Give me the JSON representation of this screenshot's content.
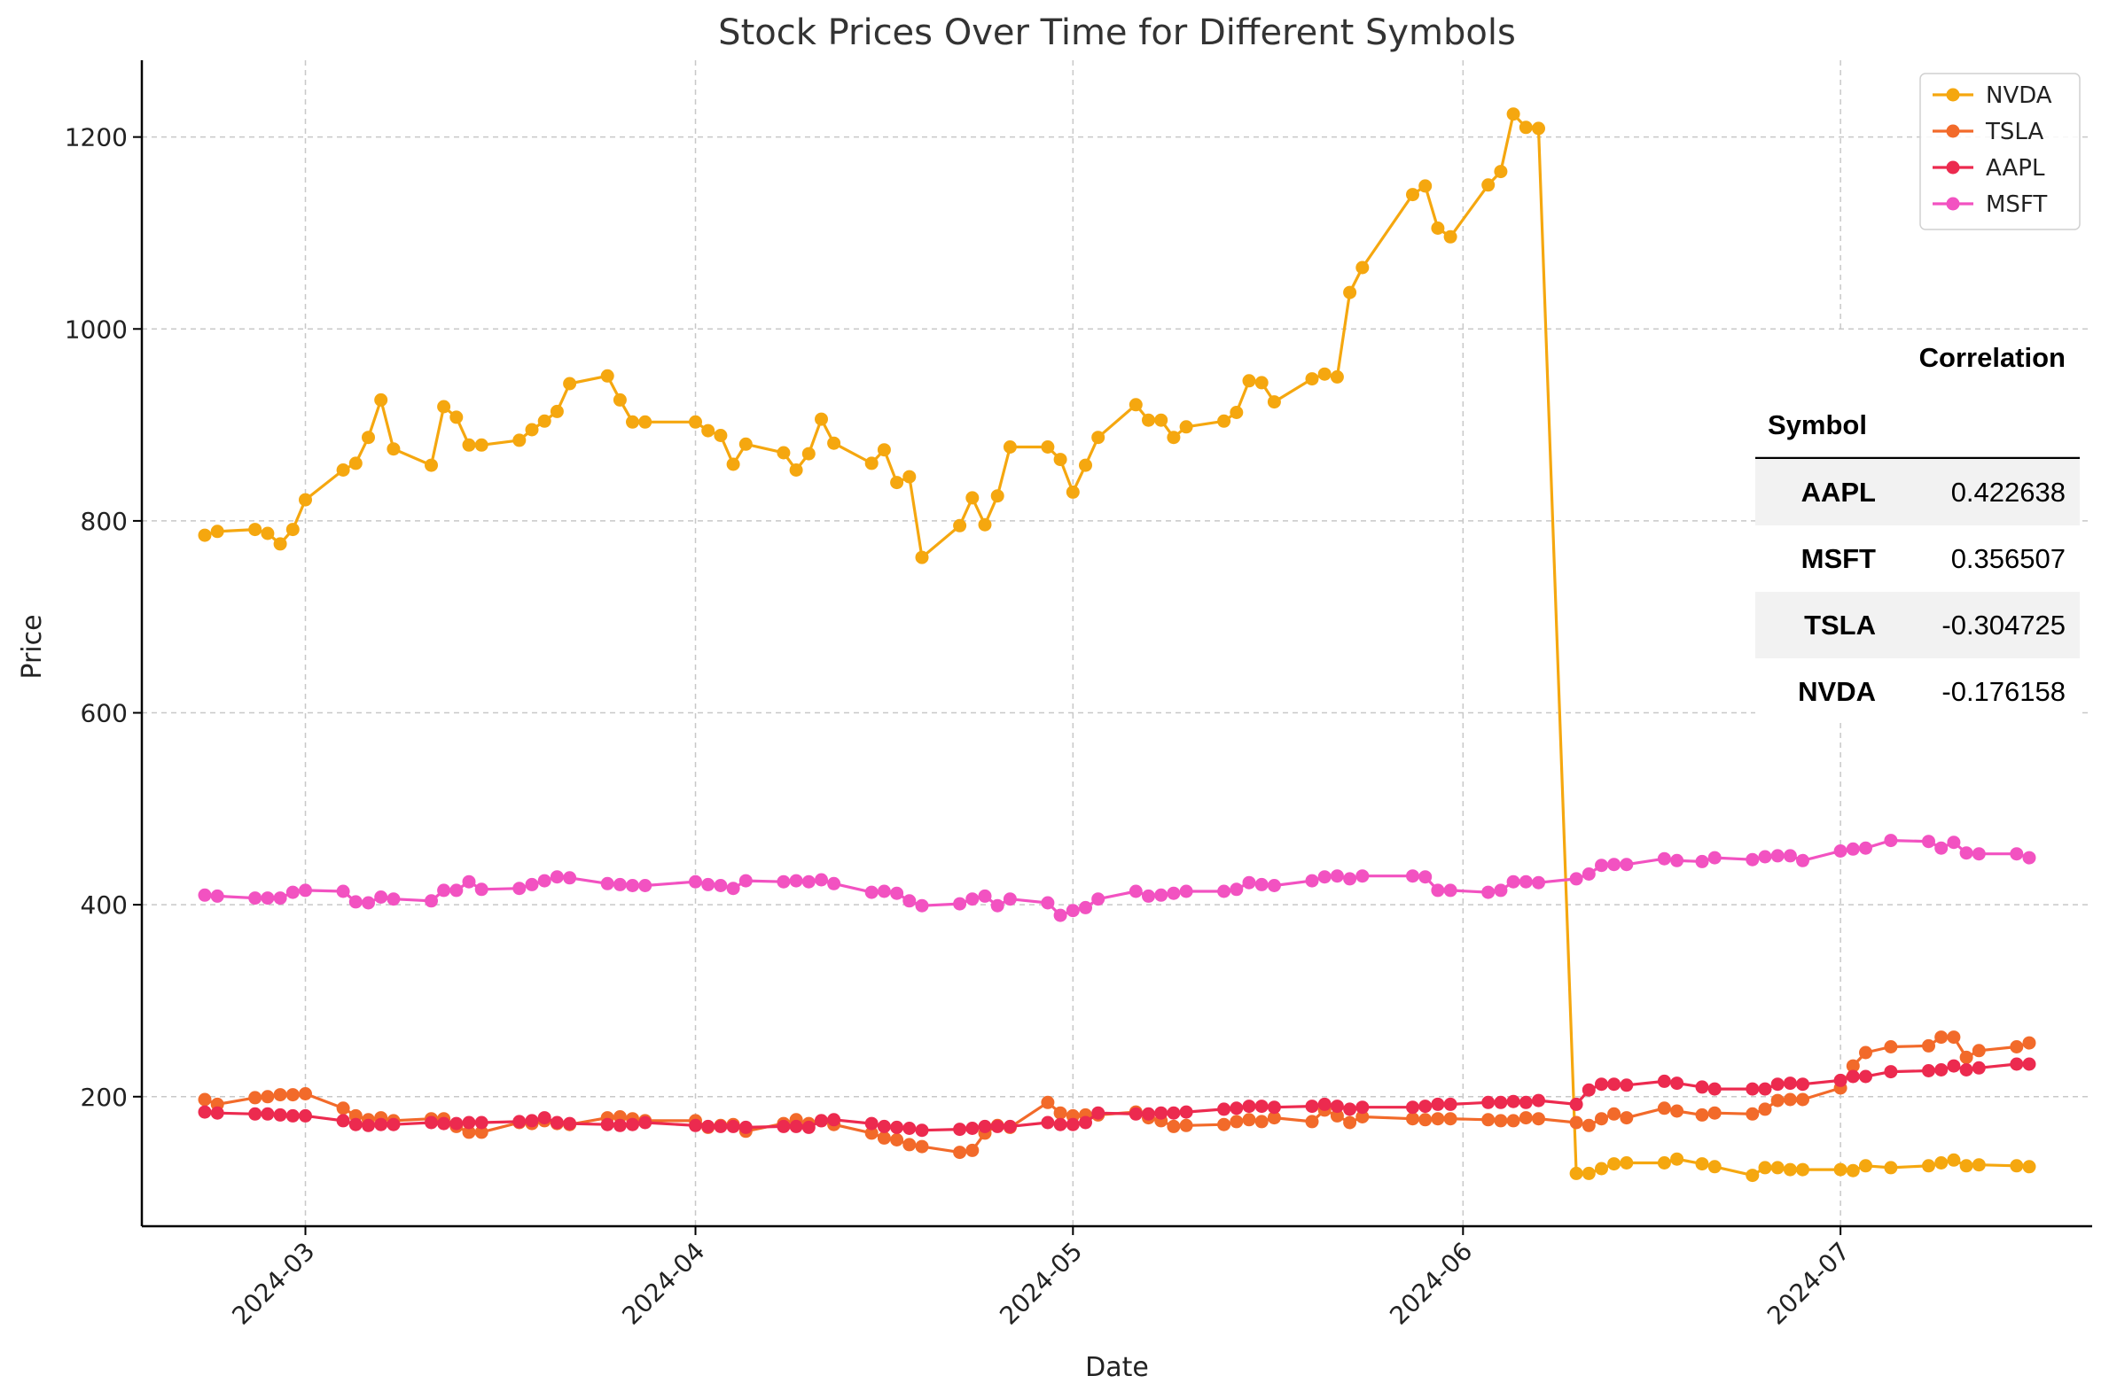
{
  "chart_data": {
    "type": "line",
    "title": "Stock Prices Over Time for Different Symbols",
    "xlabel": "Date",
    "ylabel": "Price",
    "xlim": [
      "2024-02-17",
      "2024-07-21"
    ],
    "ylim": [
      65,
      1280
    ],
    "x_ticks": [
      {
        "date": "2024-03-01",
        "label": "2024-03"
      },
      {
        "date": "2024-04-01",
        "label": "2024-04"
      },
      {
        "date": "2024-05-01",
        "label": "2024-05"
      },
      {
        "date": "2024-06-01",
        "label": "2024-06"
      },
      {
        "date": "2024-07-01",
        "label": "2024-07"
      }
    ],
    "y_ticks": [
      {
        "value": 200,
        "label": "200"
      },
      {
        "value": 400,
        "label": "400"
      },
      {
        "value": 600,
        "label": "600"
      },
      {
        "value": 800,
        "label": "800"
      },
      {
        "value": 1000,
        "label": "1000"
      },
      {
        "value": 1200,
        "label": "1200"
      }
    ],
    "grid": true,
    "legend_position": "top-right",
    "series": [
      {
        "name": "NVDA",
        "color": "#f5a70f",
        "x": [
          "2024-02-22",
          "2024-02-23",
          "2024-02-26",
          "2024-02-27",
          "2024-02-28",
          "2024-02-29",
          "2024-03-01",
          "2024-03-04",
          "2024-03-05",
          "2024-03-06",
          "2024-03-07",
          "2024-03-08",
          "2024-03-11",
          "2024-03-12",
          "2024-03-13",
          "2024-03-14",
          "2024-03-15",
          "2024-03-18",
          "2024-03-19",
          "2024-03-20",
          "2024-03-21",
          "2024-03-22",
          "2024-03-25",
          "2024-03-26",
          "2024-03-27",
          "2024-03-28",
          "2024-04-01",
          "2024-04-02",
          "2024-04-03",
          "2024-04-04",
          "2024-04-05",
          "2024-04-08",
          "2024-04-09",
          "2024-04-10",
          "2024-04-11",
          "2024-04-12",
          "2024-04-15",
          "2024-04-16",
          "2024-04-17",
          "2024-04-18",
          "2024-04-19",
          "2024-04-22",
          "2024-04-23",
          "2024-04-24",
          "2024-04-25",
          "2024-04-26",
          "2024-04-29",
          "2024-04-30",
          "2024-05-01",
          "2024-05-02",
          "2024-05-03",
          "2024-05-06",
          "2024-05-07",
          "2024-05-08",
          "2024-05-09",
          "2024-05-10",
          "2024-05-13",
          "2024-05-14",
          "2024-05-15",
          "2024-05-16",
          "2024-05-17",
          "2024-05-20",
          "2024-05-21",
          "2024-05-22",
          "2024-05-23",
          "2024-05-24",
          "2024-05-28",
          "2024-05-29",
          "2024-05-30",
          "2024-05-31",
          "2024-06-03",
          "2024-06-04",
          "2024-06-05",
          "2024-06-06",
          "2024-06-07",
          "2024-06-10",
          "2024-06-11",
          "2024-06-12",
          "2024-06-13",
          "2024-06-14",
          "2024-06-17",
          "2024-06-18",
          "2024-06-20",
          "2024-06-21",
          "2024-06-24",
          "2024-06-25",
          "2024-06-26",
          "2024-06-27",
          "2024-06-28",
          "2024-07-01",
          "2024-07-02",
          "2024-07-03",
          "2024-07-05",
          "2024-07-08",
          "2024-07-09",
          "2024-07-10",
          "2024-07-11",
          "2024-07-12",
          "2024-07-15",
          "2024-07-16"
        ],
        "values": [
          785,
          789,
          791,
          787,
          776,
          791,
          822,
          853,
          860,
          887,
          926,
          875,
          858,
          919,
          908,
          879,
          879,
          884,
          895,
          904,
          914,
          943,
          951,
          926,
          903,
          903,
          903,
          894,
          889,
          859,
          880,
          871,
          853,
          870,
          906,
          881,
          860,
          874,
          840,
          846,
          762,
          795,
          824,
          796,
          826,
          877,
          877,
          864,
          830,
          858,
          887,
          921,
          905,
          905,
          887,
          898,
          904,
          913,
          946,
          944,
          924,
          948,
          953,
          950,
          1038,
          1064,
          1140,
          1149,
          1105,
          1096,
          1150,
          1164,
          1224,
          1210,
          1209,
          120,
          120,
          125,
          130,
          131,
          131,
          135,
          130,
          127,
          118,
          126,
          126,
          124,
          124,
          124,
          123,
          128,
          126,
          128,
          131,
          134,
          128,
          129,
          128,
          127
        ]
      },
      {
        "name": "TSLA",
        "color": "#f26a2a",
        "x": [
          "2024-02-22",
          "2024-02-23",
          "2024-02-26",
          "2024-02-27",
          "2024-02-28",
          "2024-02-29",
          "2024-03-01",
          "2024-03-04",
          "2024-03-05",
          "2024-03-06",
          "2024-03-07",
          "2024-03-08",
          "2024-03-11",
          "2024-03-12",
          "2024-03-13",
          "2024-03-14",
          "2024-03-15",
          "2024-03-18",
          "2024-03-19",
          "2024-03-20",
          "2024-03-21",
          "2024-03-22",
          "2024-03-25",
          "2024-03-26",
          "2024-03-27",
          "2024-03-28",
          "2024-04-01",
          "2024-04-02",
          "2024-04-03",
          "2024-04-04",
          "2024-04-05",
          "2024-04-08",
          "2024-04-09",
          "2024-04-10",
          "2024-04-11",
          "2024-04-12",
          "2024-04-15",
          "2024-04-16",
          "2024-04-17",
          "2024-04-18",
          "2024-04-19",
          "2024-04-22",
          "2024-04-23",
          "2024-04-24",
          "2024-04-25",
          "2024-04-26",
          "2024-04-29",
          "2024-04-30",
          "2024-05-01",
          "2024-05-02",
          "2024-05-03",
          "2024-05-06",
          "2024-05-07",
          "2024-05-08",
          "2024-05-09",
          "2024-05-10",
          "2024-05-13",
          "2024-05-14",
          "2024-05-15",
          "2024-05-16",
          "2024-05-17",
          "2024-05-20",
          "2024-05-21",
          "2024-05-22",
          "2024-05-23",
          "2024-05-24",
          "2024-05-28",
          "2024-05-29",
          "2024-05-30",
          "2024-05-31",
          "2024-06-03",
          "2024-06-04",
          "2024-06-05",
          "2024-06-06",
          "2024-06-07",
          "2024-06-10",
          "2024-06-11",
          "2024-06-12",
          "2024-06-13",
          "2024-06-14",
          "2024-06-17",
          "2024-06-18",
          "2024-06-20",
          "2024-06-21",
          "2024-06-24",
          "2024-06-25",
          "2024-06-26",
          "2024-06-27",
          "2024-06-28",
          "2024-07-01",
          "2024-07-02",
          "2024-07-03",
          "2024-07-05",
          "2024-07-08",
          "2024-07-09",
          "2024-07-10",
          "2024-07-11",
          "2024-07-12",
          "2024-07-15",
          "2024-07-16"
        ],
        "values": [
          197,
          192,
          199,
          200,
          202,
          202,
          203,
          188,
          180,
          176,
          178,
          175,
          177,
          177,
          169,
          163,
          163,
          173,
          172,
          175,
          172,
          171,
          178,
          179,
          177,
          175,
          175,
          168,
          170,
          171,
          164,
          172,
          176,
          172,
          175,
          171,
          162,
          157,
          155,
          150,
          148,
          142,
          144,
          162,
          170,
          168,
          194,
          183,
          180,
          181,
          181,
          184,
          178,
          175,
          169,
          170,
          171,
          174,
          176,
          174,
          178,
          174,
          186,
          180,
          173,
          179,
          177,
          176,
          177,
          177,
          176,
          175,
          175,
          178,
          177,
          173,
          170,
          177,
          182,
          178,
          188,
          185,
          181,
          183,
          182,
          187,
          196,
          197,
          197,
          209,
          232,
          246,
          252,
          253,
          262,
          262,
          241,
          248,
          252,
          256
        ]
      },
      {
        "name": "AAPL",
        "color": "#ec2a4f",
        "x": [
          "2024-02-22",
          "2024-02-23",
          "2024-02-26",
          "2024-02-27",
          "2024-02-28",
          "2024-02-29",
          "2024-03-01",
          "2024-03-04",
          "2024-03-05",
          "2024-03-06",
          "2024-03-07",
          "2024-03-08",
          "2024-03-11",
          "2024-03-12",
          "2024-03-13",
          "2024-03-14",
          "2024-03-15",
          "2024-03-18",
          "2024-03-19",
          "2024-03-20",
          "2024-03-21",
          "2024-03-22",
          "2024-03-25",
          "2024-03-26",
          "2024-03-27",
          "2024-03-28",
          "2024-04-01",
          "2024-04-02",
          "2024-04-03",
          "2024-04-04",
          "2024-04-05",
          "2024-04-08",
          "2024-04-09",
          "2024-04-10",
          "2024-04-11",
          "2024-04-12",
          "2024-04-15",
          "2024-04-16",
          "2024-04-17",
          "2024-04-18",
          "2024-04-19",
          "2024-04-22",
          "2024-04-23",
          "2024-04-24",
          "2024-04-25",
          "2024-04-26",
          "2024-04-29",
          "2024-04-30",
          "2024-05-01",
          "2024-05-02",
          "2024-05-03",
          "2024-05-06",
          "2024-05-07",
          "2024-05-08",
          "2024-05-09",
          "2024-05-10",
          "2024-05-13",
          "2024-05-14",
          "2024-05-15",
          "2024-05-16",
          "2024-05-17",
          "2024-05-20",
          "2024-05-21",
          "2024-05-22",
          "2024-05-23",
          "2024-05-24",
          "2024-05-28",
          "2024-05-29",
          "2024-05-30",
          "2024-05-31",
          "2024-06-03",
          "2024-06-04",
          "2024-06-05",
          "2024-06-06",
          "2024-06-07",
          "2024-06-10",
          "2024-06-11",
          "2024-06-12",
          "2024-06-13",
          "2024-06-14",
          "2024-06-17",
          "2024-06-18",
          "2024-06-20",
          "2024-06-21",
          "2024-06-24",
          "2024-06-25",
          "2024-06-26",
          "2024-06-27",
          "2024-06-28",
          "2024-07-01",
          "2024-07-02",
          "2024-07-03",
          "2024-07-05",
          "2024-07-08",
          "2024-07-09",
          "2024-07-10",
          "2024-07-11",
          "2024-07-12",
          "2024-07-15",
          "2024-07-16"
        ],
        "values": [
          184,
          183,
          182,
          182,
          181,
          180,
          180,
          175,
          171,
          170,
          171,
          171,
          173,
          172,
          172,
          173,
          173,
          174,
          175,
          178,
          173,
          172,
          171,
          170,
          171,
          173,
          170,
          169,
          169,
          169,
          168,
          169,
          169,
          168,
          175,
          176,
          172,
          169,
          168,
          167,
          165,
          166,
          167,
          169,
          169,
          169,
          173,
          171,
          171,
          173,
          183,
          182,
          182,
          183,
          183,
          184,
          187,
          188,
          190,
          190,
          189,
          190,
          192,
          190,
          187,
          189,
          189,
          190,
          192,
          192,
          194,
          194,
          195,
          194,
          196,
          192,
          207,
          213,
          213,
          212,
          216,
          214,
          210,
          208,
          208,
          208,
          213,
          214,
          213,
          217,
          221,
          221,
          226,
          227,
          228,
          232,
          228,
          230,
          234,
          234
        ]
      },
      {
        "name": "MSFT",
        "color": "#f252c1",
        "x": [
          "2024-02-22",
          "2024-02-23",
          "2024-02-26",
          "2024-02-27",
          "2024-02-28",
          "2024-02-29",
          "2024-03-01",
          "2024-03-04",
          "2024-03-05",
          "2024-03-06",
          "2024-03-07",
          "2024-03-08",
          "2024-03-11",
          "2024-03-12",
          "2024-03-13",
          "2024-03-14",
          "2024-03-15",
          "2024-03-18",
          "2024-03-19",
          "2024-03-20",
          "2024-03-21",
          "2024-03-22",
          "2024-03-25",
          "2024-03-26",
          "2024-03-27",
          "2024-03-28",
          "2024-04-01",
          "2024-04-02",
          "2024-04-03",
          "2024-04-04",
          "2024-04-05",
          "2024-04-08",
          "2024-04-09",
          "2024-04-10",
          "2024-04-11",
          "2024-04-12",
          "2024-04-15",
          "2024-04-16",
          "2024-04-17",
          "2024-04-18",
          "2024-04-19",
          "2024-04-22",
          "2024-04-23",
          "2024-04-24",
          "2024-04-25",
          "2024-04-26",
          "2024-04-29",
          "2024-04-30",
          "2024-05-01",
          "2024-05-02",
          "2024-05-03",
          "2024-05-06",
          "2024-05-07",
          "2024-05-08",
          "2024-05-09",
          "2024-05-10",
          "2024-05-13",
          "2024-05-14",
          "2024-05-15",
          "2024-05-16",
          "2024-05-17",
          "2024-05-20",
          "2024-05-21",
          "2024-05-22",
          "2024-05-23",
          "2024-05-24",
          "2024-05-28",
          "2024-05-29",
          "2024-05-30",
          "2024-05-31",
          "2024-06-03",
          "2024-06-04",
          "2024-06-05",
          "2024-06-06",
          "2024-06-07",
          "2024-06-10",
          "2024-06-11",
          "2024-06-12",
          "2024-06-13",
          "2024-06-14",
          "2024-06-17",
          "2024-06-18",
          "2024-06-20",
          "2024-06-21",
          "2024-06-24",
          "2024-06-25",
          "2024-06-26",
          "2024-06-27",
          "2024-06-28",
          "2024-07-01",
          "2024-07-02",
          "2024-07-03",
          "2024-07-05",
          "2024-07-08",
          "2024-07-09",
          "2024-07-10",
          "2024-07-11",
          "2024-07-12",
          "2024-07-15",
          "2024-07-16"
        ],
        "values": [
          410,
          409,
          407,
          407,
          407,
          413,
          415,
          414,
          403,
          402,
          408,
          406,
          404,
          415,
          415,
          424,
          416,
          417,
          421,
          425,
          429,
          428,
          422,
          421,
          420,
          420,
          424,
          421,
          420,
          417,
          425,
          424,
          425,
          424,
          426,
          422,
          413,
          414,
          412,
          404,
          399,
          401,
          406,
          409,
          399,
          406,
          402,
          389,
          394,
          397,
          406,
          414,
          409,
          410,
          412,
          414,
          414,
          416,
          423,
          421,
          420,
          425,
          429,
          430,
          427,
          430,
          430,
          429,
          415,
          415,
          413,
          415,
          424,
          424,
          423,
          427,
          432,
          441,
          442,
          442,
          448,
          446,
          445,
          449,
          447,
          450,
          451,
          451,
          446,
          456,
          458,
          459,
          467,
          466,
          459,
          465,
          454,
          453,
          453,
          449
        ]
      }
    ],
    "table": {
      "title": "Correlation",
      "index_header": "Symbol",
      "rows": [
        {
          "symbol": "AAPL",
          "value": "0.422638"
        },
        {
          "symbol": "MSFT",
          "value": "0.356507"
        },
        {
          "symbol": "TSLA",
          "value": "-0.304725"
        },
        {
          "symbol": "NVDA",
          "value": "-0.176158"
        }
      ]
    }
  }
}
